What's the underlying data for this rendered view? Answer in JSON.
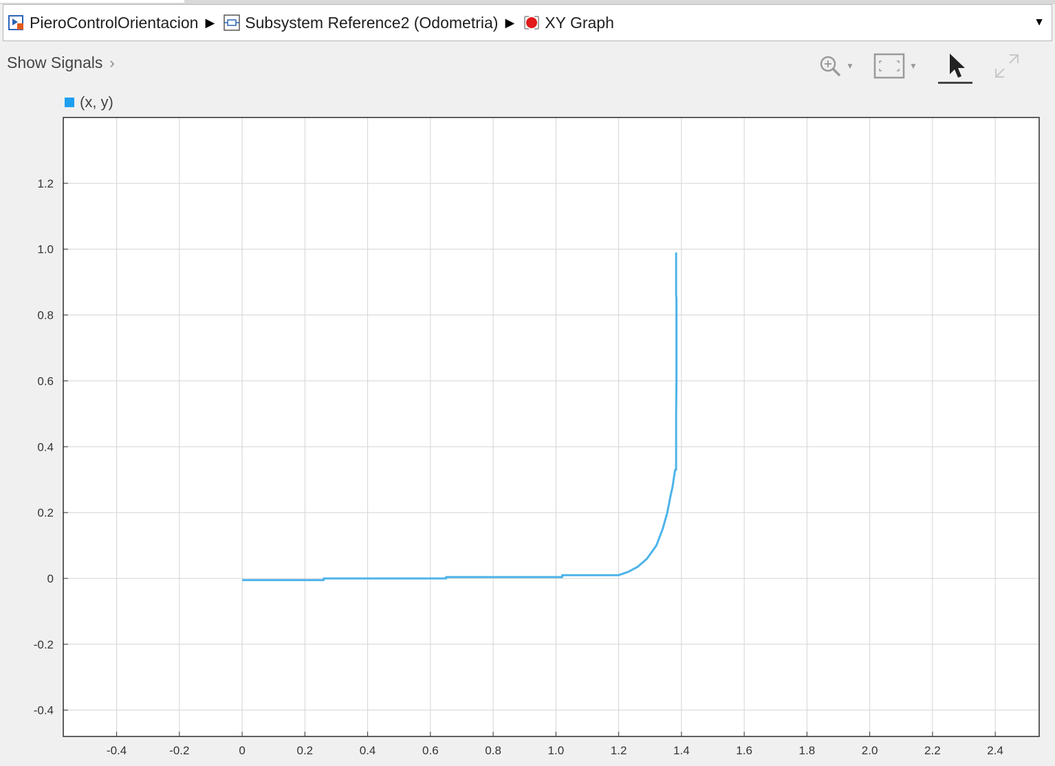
{
  "breadcrumb": {
    "items": [
      {
        "label": "PieroControlOrientacion",
        "icon": "model-icon"
      },
      {
        "label": "Subsystem Reference2 (Odometria)",
        "icon": "subsystem-icon"
      },
      {
        "label": "XY Graph",
        "icon": "record-icon"
      }
    ],
    "dropdown_icon": "chevron-down-icon"
  },
  "toolbar": {
    "show_signals_label": "Show Signals",
    "zoom_icon": "zoom-in-icon",
    "fit_icon": "fit-to-view-icon",
    "select_icon": "pointer-icon",
    "expand_icon": "expand-icon"
  },
  "colors": {
    "series": "#4db3ea",
    "legend_swatch": "#1e9ff0",
    "grid": "#d4d4d4"
  },
  "chart_data": {
    "type": "line",
    "title": "",
    "xlabel": "",
    "ylabel": "",
    "legend": [
      "(x, y)"
    ],
    "legend_position": "top-left",
    "grid": true,
    "xlim": [
      -0.57,
      2.54
    ],
    "ylim": [
      -0.48,
      1.4
    ],
    "xticks": [
      -0.4,
      -0.2,
      0,
      0.2,
      0.4,
      0.6,
      0.8,
      1.0,
      1.2,
      1.4,
      1.6,
      1.8,
      2.0,
      2.2,
      2.4
    ],
    "xtick_labels": [
      "-0.4",
      "-0.2",
      "0",
      "0.2",
      "0.4",
      "0.6",
      "0.8",
      "1.0",
      "1.2",
      "1.4",
      "1.6",
      "1.8",
      "2.0",
      "2.2",
      "2.4"
    ],
    "yticks": [
      -0.4,
      -0.2,
      0,
      0.2,
      0.4,
      0.6,
      0.8,
      1.0,
      1.2
    ],
    "ytick_labels": [
      "-0.4",
      "-0.2",
      "0",
      "0.2",
      "0.4",
      "0.6",
      "0.8",
      "1.0",
      "1.2"
    ],
    "series": [
      {
        "name": "(x, y)",
        "x": [
          0,
          0.26,
          0.26,
          0.65,
          0.65,
          1.02,
          1.02,
          1.2,
          1.23,
          1.26,
          1.29,
          1.32,
          1.34,
          1.355,
          1.365,
          1.372,
          1.375,
          1.38,
          1.383,
          1.383,
          1.384,
          1.384,
          1.383,
          1.383
        ],
        "y": [
          -0.005,
          -0.005,
          0.0,
          0.0,
          0.004,
          0.004,
          0.01,
          0.01,
          0.02,
          0.035,
          0.06,
          0.1,
          0.15,
          0.2,
          0.25,
          0.28,
          0.3,
          0.33,
          0.33,
          0.5,
          0.6,
          0.85,
          0.86,
          0.99
        ]
      }
    ]
  }
}
